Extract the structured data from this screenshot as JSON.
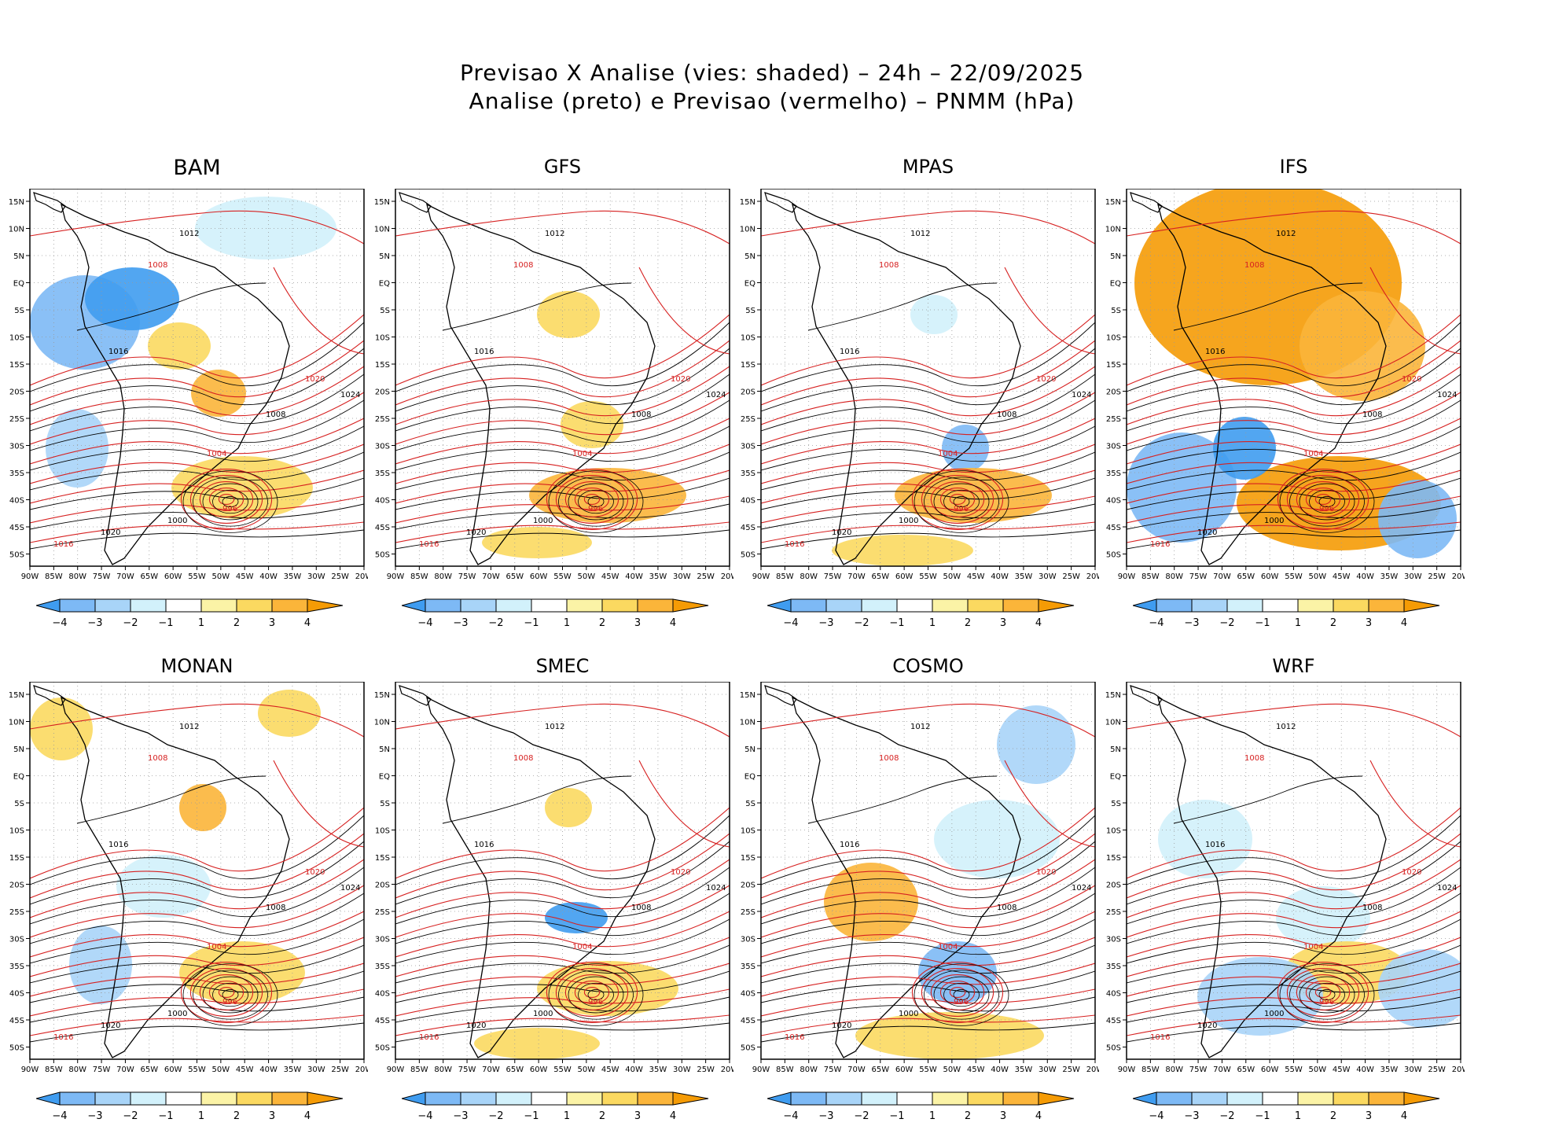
{
  "title": {
    "line1": "Previsao X Analise (vies: shaded) – 24h – 22/09/2025",
    "line2": "Analise (preto) e Previsao (vermelho) – PNMM (hPa)"
  },
  "panels": [
    {
      "name": "BAM"
    },
    {
      "name": "GFS"
    },
    {
      "name": "MPAS"
    },
    {
      "name": "IFS"
    },
    {
      "name": "MONAN"
    },
    {
      "name": "SMEC"
    },
    {
      "name": "COSMO"
    },
    {
      "name": "WRF"
    }
  ],
  "lat_ticks": [
    "15N",
    "10N",
    "5N",
    "EQ",
    "5S",
    "10S",
    "15S",
    "20S",
    "25S",
    "30S",
    "35S",
    "40S",
    "45S",
    "50S"
  ],
  "lon_ticks": [
    "90W",
    "85W",
    "80W",
    "75W",
    "70W",
    "65W",
    "60W",
    "55W",
    "50W",
    "45W",
    "40W",
    "35W",
    "30W",
    "25W",
    "20W"
  ],
  "colorbar": {
    "labels": [
      "−4",
      "−3",
      "−2",
      "−1",
      "1",
      "2",
      "3",
      "4"
    ],
    "colors": [
      "#3f9cf0",
      "#7db9f5",
      "#a8d4f8",
      "#d2f1fb",
      "#ffffff",
      "#fbf3a6",
      "#fbd960",
      "#fbb53a",
      "#f59b05"
    ]
  },
  "isobars": {
    "analysis_color": "#000000",
    "forecast_color": "#d62020",
    "labels": [
      "1012",
      "1008",
      "1016",
      "1020",
      "1024",
      "1004",
      "1000",
      "996"
    ]
  }
}
